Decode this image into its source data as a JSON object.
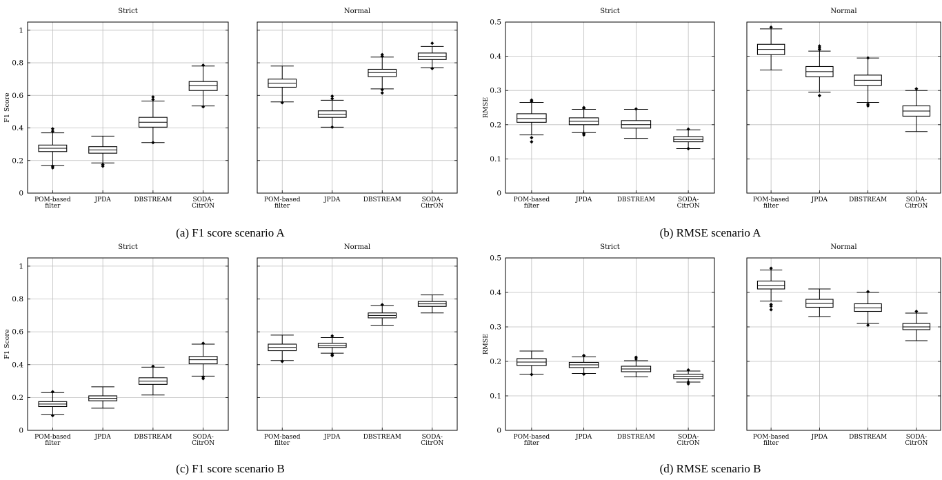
{
  "figure": {
    "captions": [
      "(a) F1 score scenario A",
      "(b) RMSE scenario A",
      "(c) F1 score scenario B",
      "(d) RMSE scenario B"
    ]
  },
  "chart_data": [
    {
      "type": "box",
      "caption": "(a) F1 score scenario A",
      "ylabel": "F1 Score",
      "ylim": [
        0,
        1.05
      ],
      "yticks": [
        0,
        0.2,
        0.4,
        0.6,
        0.8,
        1
      ],
      "ytick_labels": [
        "0",
        "0.2",
        "0.4",
        "0.6",
        "0.8",
        "1"
      ],
      "grid": true,
      "categories": [
        "POM-based filter",
        "JPDA",
        "DBSTREAM",
        "SODA-CitrON"
      ],
      "panels": [
        {
          "title": "Strict",
          "boxes": [
            {
              "whislo": 0.17,
              "q1": 0.255,
              "med": 0.275,
              "q3": 0.295,
              "whishi": 0.37,
              "fliers": [
                0.155,
                0.165,
                0.38,
                0.395
              ]
            },
            {
              "whislo": 0.185,
              "q1": 0.245,
              "med": 0.265,
              "q3": 0.285,
              "whishi": 0.35,
              "fliers": [
                0.165,
                0.175
              ]
            },
            {
              "whislo": 0.31,
              "q1": 0.405,
              "med": 0.435,
              "q3": 0.465,
              "whishi": 0.565,
              "fliers": [
                0.31,
                0.575,
                0.59
              ]
            },
            {
              "whislo": 0.535,
              "q1": 0.63,
              "med": 0.66,
              "q3": 0.685,
              "whishi": 0.78,
              "fliers": [
                0.53,
                0.785
              ]
            }
          ]
        },
        {
          "title": "Normal",
          "boxes": [
            {
              "whislo": 0.56,
              "q1": 0.65,
              "med": 0.675,
              "q3": 0.7,
              "whishi": 0.78,
              "fliers": [
                0.555
              ]
            },
            {
              "whislo": 0.405,
              "q1": 0.465,
              "med": 0.485,
              "q3": 0.505,
              "whishi": 0.57,
              "fliers": [
                0.405,
                0.58,
                0.595
              ]
            },
            {
              "whislo": 0.64,
              "q1": 0.715,
              "med": 0.74,
              "q3": 0.76,
              "whishi": 0.835,
              "fliers": [
                0.615,
                0.635,
                0.84,
                0.85
              ]
            },
            {
              "whislo": 0.77,
              "q1": 0.82,
              "med": 0.84,
              "q3": 0.86,
              "whishi": 0.9,
              "fliers": [
                0.765,
                0.92
              ]
            }
          ]
        }
      ]
    },
    {
      "type": "box",
      "caption": "(b) RMSE scenario A",
      "ylabel": "RMSE",
      "ylim": [
        0,
        0.5
      ],
      "yticks": [
        0,
        0.1,
        0.2,
        0.3,
        0.4,
        0.5
      ],
      "ytick_labels": [
        "0",
        "0.1",
        "0.2",
        "0.3",
        "0.4",
        "0.5"
      ],
      "grid": true,
      "categories": [
        "POM-based filter",
        "JPDA",
        "DBSTREAM",
        "SODA-CitrON"
      ],
      "panels": [
        {
          "title": "Strict",
          "boxes": [
            {
              "whislo": 0.17,
              "q1": 0.207,
              "med": 0.218,
              "q3": 0.232,
              "whishi": 0.265,
              "fliers": [
                0.15,
                0.162,
                0.268,
                0.272
              ]
            },
            {
              "whislo": 0.177,
              "q1": 0.2,
              "med": 0.21,
              "q3": 0.22,
              "whishi": 0.245,
              "fliers": [
                0.17,
                0.175,
                0.248,
                0.25
              ]
            },
            {
              "whislo": 0.16,
              "q1": 0.19,
              "med": 0.2,
              "q3": 0.212,
              "whishi": 0.245,
              "fliers": [
                0.246
              ]
            },
            {
              "whislo": 0.13,
              "q1": 0.15,
              "med": 0.157,
              "q3": 0.165,
              "whishi": 0.185,
              "fliers": [
                0.13,
                0.187
              ]
            }
          ]
        },
        {
          "title": "Normal",
          "boxes": [
            {
              "whislo": 0.36,
              "q1": 0.405,
              "med": 0.42,
              "q3": 0.435,
              "whishi": 0.48,
              "fliers": [
                0.485
              ]
            },
            {
              "whislo": 0.295,
              "q1": 0.34,
              "med": 0.355,
              "q3": 0.37,
              "whishi": 0.415,
              "fliers": [
                0.285,
                0.42,
                0.425,
                0.43
              ]
            },
            {
              "whislo": 0.265,
              "q1": 0.315,
              "med": 0.33,
              "q3": 0.345,
              "whishi": 0.395,
              "fliers": [
                0.255,
                0.26,
                0.395
              ]
            },
            {
              "whislo": 0.18,
              "q1": 0.225,
              "med": 0.24,
              "q3": 0.255,
              "whishi": 0.3,
              "fliers": [
                0.305
              ]
            }
          ]
        }
      ]
    },
    {
      "type": "box",
      "caption": "(c) F1 score scenario B",
      "ylabel": "F1 Score",
      "ylim": [
        0,
        1.05
      ],
      "yticks": [
        0,
        0.2,
        0.4,
        0.6,
        0.8,
        1
      ],
      "ytick_labels": [
        "0",
        "0.2",
        "0.4",
        "0.6",
        "0.8",
        "1"
      ],
      "grid": true,
      "categories": [
        "POM-based filter",
        "JPDA",
        "DBSTREAM",
        "SODA-CitrON"
      ],
      "panels": [
        {
          "title": "Strict",
          "boxes": [
            {
              "whislo": 0.095,
              "q1": 0.145,
              "med": 0.16,
              "q3": 0.175,
              "whishi": 0.23,
              "fliers": [
                0.09,
                0.235
              ]
            },
            {
              "whislo": 0.135,
              "q1": 0.18,
              "med": 0.195,
              "q3": 0.21,
              "whishi": 0.265,
              "fliers": []
            },
            {
              "whislo": 0.215,
              "q1": 0.28,
              "med": 0.3,
              "q3": 0.32,
              "whishi": 0.385,
              "fliers": [
                0.39
              ]
            },
            {
              "whislo": 0.33,
              "q1": 0.405,
              "med": 0.43,
              "q3": 0.45,
              "whishi": 0.525,
              "fliers": [
                0.315,
                0.325,
                0.53
              ]
            }
          ]
        },
        {
          "title": "Normal",
          "boxes": [
            {
              "whislo": 0.425,
              "q1": 0.485,
              "med": 0.505,
              "q3": 0.525,
              "whishi": 0.58,
              "fliers": [
                0.42
              ]
            },
            {
              "whislo": 0.47,
              "q1": 0.505,
              "med": 0.515,
              "q3": 0.53,
              "whishi": 0.565,
              "fliers": [
                0.455,
                0.465,
                0.575
              ]
            },
            {
              "whislo": 0.64,
              "q1": 0.685,
              "med": 0.7,
              "q3": 0.715,
              "whishi": 0.76,
              "fliers": [
                0.765
              ]
            },
            {
              "whislo": 0.715,
              "q1": 0.755,
              "med": 0.77,
              "q3": 0.785,
              "whishi": 0.825,
              "fliers": []
            }
          ]
        }
      ]
    },
    {
      "type": "box",
      "caption": "(d) RMSE scenario B",
      "ylabel": "RMSE",
      "ylim": [
        0,
        0.5
      ],
      "yticks": [
        0,
        0.1,
        0.2,
        0.3,
        0.4,
        0.5
      ],
      "ytick_labels": [
        "0",
        "0.1",
        "0.2",
        "0.3",
        "0.4",
        "0.5"
      ],
      "grid": true,
      "categories": [
        "POM-based filter",
        "JPDA",
        "DBSTREAM",
        "SODA-CitrON"
      ],
      "panels": [
        {
          "title": "Strict",
          "boxes": [
            {
              "whislo": 0.163,
              "q1": 0.188,
              "med": 0.198,
              "q3": 0.208,
              "whishi": 0.23,
              "fliers": [
                0.162
              ]
            },
            {
              "whislo": 0.165,
              "q1": 0.182,
              "med": 0.19,
              "q3": 0.197,
              "whishi": 0.213,
              "fliers": [
                0.163,
                0.217
              ]
            },
            {
              "whislo": 0.155,
              "q1": 0.17,
              "med": 0.178,
              "q3": 0.186,
              "whishi": 0.202,
              "fliers": [
                0.207,
                0.212
              ]
            },
            {
              "whislo": 0.14,
              "q1": 0.15,
              "med": 0.157,
              "q3": 0.163,
              "whishi": 0.172,
              "fliers": [
                0.135,
                0.14,
                0.175
              ]
            }
          ]
        },
        {
          "title": "Normal",
          "boxes": [
            {
              "whislo": 0.375,
              "q1": 0.41,
              "med": 0.42,
              "q3": 0.433,
              "whishi": 0.465,
              "fliers": [
                0.35,
                0.36,
                0.365,
                0.47
              ]
            },
            {
              "whislo": 0.33,
              "q1": 0.357,
              "med": 0.368,
              "q3": 0.38,
              "whishi": 0.41,
              "fliers": []
            },
            {
              "whislo": 0.31,
              "q1": 0.345,
              "med": 0.355,
              "q3": 0.367,
              "whishi": 0.4,
              "fliers": [
                0.305,
                0.402
              ]
            },
            {
              "whislo": 0.26,
              "q1": 0.292,
              "med": 0.3,
              "q3": 0.31,
              "whishi": 0.34,
              "fliers": [
                0.345
              ]
            }
          ]
        }
      ]
    }
  ]
}
